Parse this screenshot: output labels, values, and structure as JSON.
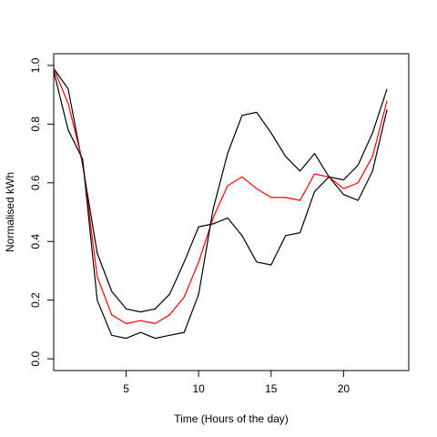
{
  "chart_data": {
    "type": "line",
    "title": "",
    "xlabel": "Time (Hours of the day)",
    "ylabel": "Normalised kWh",
    "xlim": [
      0,
      24.5
    ],
    "ylim": [
      -0.04,
      1.04
    ],
    "x_ticks": [
      5,
      10,
      15,
      20
    ],
    "y_ticks": [
      0.0,
      0.2,
      0.4,
      0.6,
      0.8,
      1.0
    ],
    "x_tick_labels": [
      "5",
      "10",
      "15",
      "20"
    ],
    "y_tick_labels": [
      "0.0",
      "0.2",
      "0.4",
      "0.6",
      "0.8",
      "1.0"
    ],
    "grid": false,
    "legend": "none",
    "x": [
      0,
      1,
      2,
      3,
      4,
      5,
      6,
      7,
      8,
      9,
      10,
      11,
      12,
      13,
      14,
      15,
      16,
      17,
      18,
      19,
      20,
      21,
      22,
      23
    ],
    "series": [
      {
        "color": "#000000",
        "values": [
          0.99,
          0.92,
          0.66,
          0.36,
          0.23,
          0.17,
          0.16,
          0.17,
          0.22,
          0.33,
          0.45,
          0.46,
          0.48,
          0.42,
          0.33,
          0.32,
          0.42,
          0.43,
          0.57,
          0.62,
          0.56,
          0.54,
          0.64,
          0.85
        ]
      },
      {
        "color": "#ff0000",
        "values": [
          0.99,
          0.87,
          0.67,
          0.28,
          0.15,
          0.12,
          0.13,
          0.12,
          0.15,
          0.21,
          0.33,
          0.48,
          0.59,
          0.62,
          0.58,
          0.55,
          0.55,
          0.54,
          0.63,
          0.62,
          0.58,
          0.6,
          0.69,
          0.88
        ]
      },
      {
        "color": "#000000",
        "values": [
          0.98,
          0.78,
          0.68,
          0.2,
          0.08,
          0.07,
          0.09,
          0.07,
          0.08,
          0.09,
          0.22,
          0.51,
          0.7,
          0.83,
          0.84,
          0.77,
          0.69,
          0.64,
          0.7,
          0.62,
          0.61,
          0.66,
          0.77,
          0.92
        ]
      }
    ]
  }
}
